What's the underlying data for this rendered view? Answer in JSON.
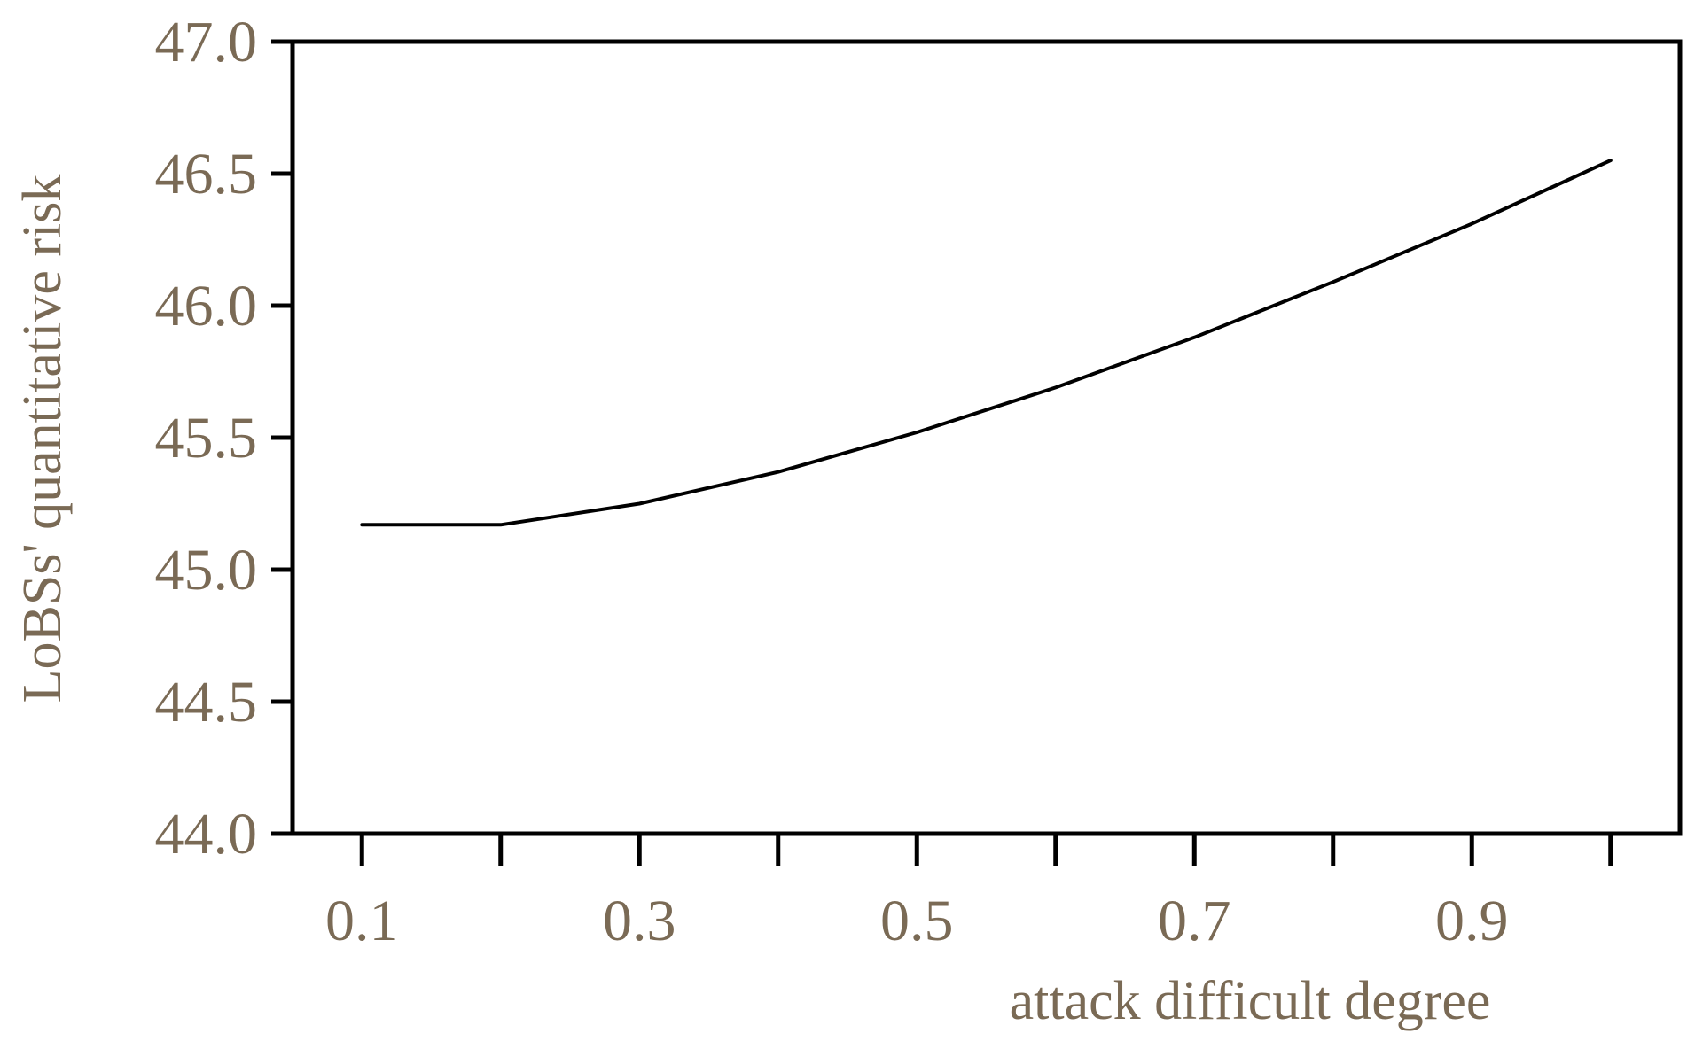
{
  "chart_data": {
    "type": "line",
    "title": "",
    "xlabel": "attack difficult degree",
    "ylabel": "LoBSs' quantitative risk",
    "xlim": [
      0.05,
      1.05
    ],
    "ylim": [
      44.0,
      47.0
    ],
    "x_ticks": [
      0.1,
      0.2,
      0.3,
      0.4,
      0.5,
      0.6,
      0.7,
      0.8,
      0.9,
      1.0
    ],
    "x_tick_labels": [
      "0.1",
      "0.3",
      "0.5",
      "0.7",
      "0.9"
    ],
    "x_tick_label_values": [
      0.1,
      0.3,
      0.5,
      0.7,
      0.9
    ],
    "y_ticks": [
      44.0,
      44.5,
      45.0,
      45.5,
      46.0,
      46.5,
      47.0
    ],
    "y_tick_labels": [
      "44.0",
      "44.5",
      "45.0",
      "45.5",
      "46.0",
      "46.5",
      "47.0"
    ],
    "grid": false,
    "legend": "none",
    "series": [
      {
        "color": "#000000",
        "x": [
          0.1,
          0.2,
          0.3,
          0.4,
          0.5,
          0.6,
          0.7,
          0.8,
          0.9,
          1.0
        ],
        "y": [
          45.17,
          45.17,
          45.25,
          45.37,
          45.52,
          45.69,
          45.88,
          46.09,
          46.31,
          46.55
        ]
      }
    ],
    "colors": {
      "axis": "#000000",
      "label_text": "#7a6a55"
    }
  }
}
